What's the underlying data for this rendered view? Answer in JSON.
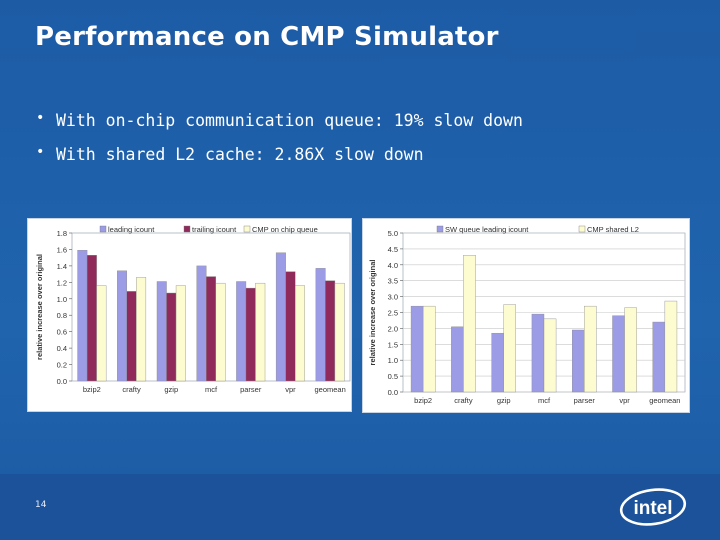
{
  "slide": {
    "title": "Performance on CMP Simulator",
    "bullets": [
      "With on-chip communication queue: 19% slow down",
      "With shared L2 cache: 2.86X slow down"
    ],
    "page_number": "14",
    "logo_text": "intel"
  },
  "colors": {
    "background": "#1f5fa8",
    "series_blue": "#9c9ce6",
    "series_maroon": "#8f2a5a",
    "series_cream": "#fdfbd0",
    "logo": "#ffffff"
  },
  "chart_data": [
    {
      "type": "bar",
      "categories": [
        "bzip2",
        "crafty",
        "gzip",
        "mcf",
        "parser",
        "vpr",
        "geomean"
      ],
      "series": [
        {
          "name": "leading icount",
          "values": [
            1.59,
            1.34,
            1.21,
            1.4,
            1.21,
            1.56,
            1.37
          ]
        },
        {
          "name": "trailing icount",
          "values": [
            1.53,
            1.09,
            1.07,
            1.27,
            1.13,
            1.33,
            1.22
          ]
        },
        {
          "name": "CMP on chip queue",
          "values": [
            1.16,
            1.26,
            1.16,
            1.19,
            1.19,
            1.16,
            1.19
          ]
        }
      ],
      "xlabel": "",
      "ylabel": "relative increase over original",
      "ylim": [
        0,
        1.8
      ],
      "yticks": [
        "0.0",
        "0.2",
        "0.4",
        "0.6",
        "0.8",
        "1.0",
        "1.2",
        "1.4",
        "1.6",
        "1.8"
      ],
      "legend": "top",
      "grid": false
    },
    {
      "type": "bar",
      "categories": [
        "bzip2",
        "crafty",
        "gzip",
        "mcf",
        "parser",
        "vpr",
        "geomean"
      ],
      "series": [
        {
          "name": "SW queue leading icount",
          "values": [
            2.7,
            2.05,
            1.85,
            2.45,
            1.95,
            2.4,
            2.2
          ]
        },
        {
          "name": "CMP shared L2",
          "values": [
            2.7,
            4.3,
            2.75,
            2.3,
            2.7,
            2.65,
            2.86
          ]
        }
      ],
      "xlabel": "",
      "ylabel": "relative increase over original",
      "ylim": [
        0,
        5.0
      ],
      "yticks": [
        "0.0",
        "0.5",
        "1.0",
        "1.5",
        "2.0",
        "2.5",
        "3.0",
        "3.5",
        "4.0",
        "4.5",
        "5.0"
      ],
      "legend": "top",
      "grid": true
    }
  ]
}
